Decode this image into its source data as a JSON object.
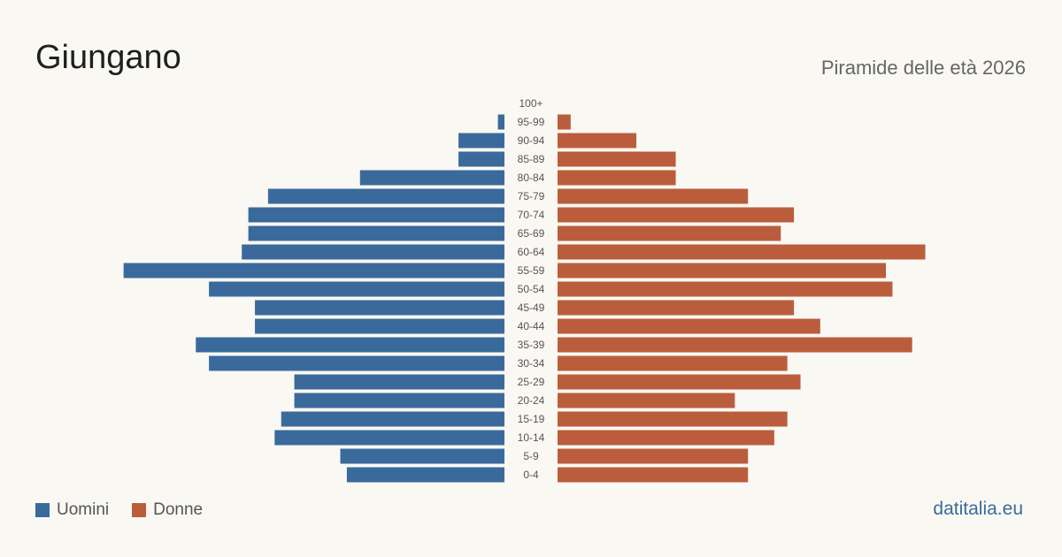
{
  "title": "Giungano",
  "subtitle": "Piramide delle età 2026",
  "brand": "datitalia.eu",
  "colors": {
    "men": "#3a6a9c",
    "women": "#bb5d3d",
    "label": "#555555",
    "brand": "#3a6a9c"
  },
  "chart_data": {
    "type": "bar",
    "orientation": "horizontal-pyramid",
    "categories": [
      "100+",
      "95-99",
      "90-94",
      "85-89",
      "80-84",
      "75-79",
      "70-74",
      "65-69",
      "60-64",
      "55-59",
      "50-54",
      "45-49",
      "40-44",
      "35-39",
      "30-34",
      "25-29",
      "20-24",
      "15-19",
      "10-14",
      "5-9",
      "0-4"
    ],
    "series": [
      {
        "name": "Uomini",
        "values": [
          0,
          1,
          7,
          7,
          22,
          36,
          39,
          39,
          40,
          58,
          45,
          38,
          38,
          47,
          45,
          32,
          32,
          34,
          35,
          25,
          24
        ]
      },
      {
        "name": "Donne",
        "values": [
          0,
          2,
          12,
          18,
          18,
          29,
          36,
          34,
          56,
          50,
          51,
          36,
          40,
          54,
          35,
          37,
          27,
          35,
          33,
          29,
          29
        ]
      }
    ],
    "legend": "bottom-left",
    "grid": false
  }
}
